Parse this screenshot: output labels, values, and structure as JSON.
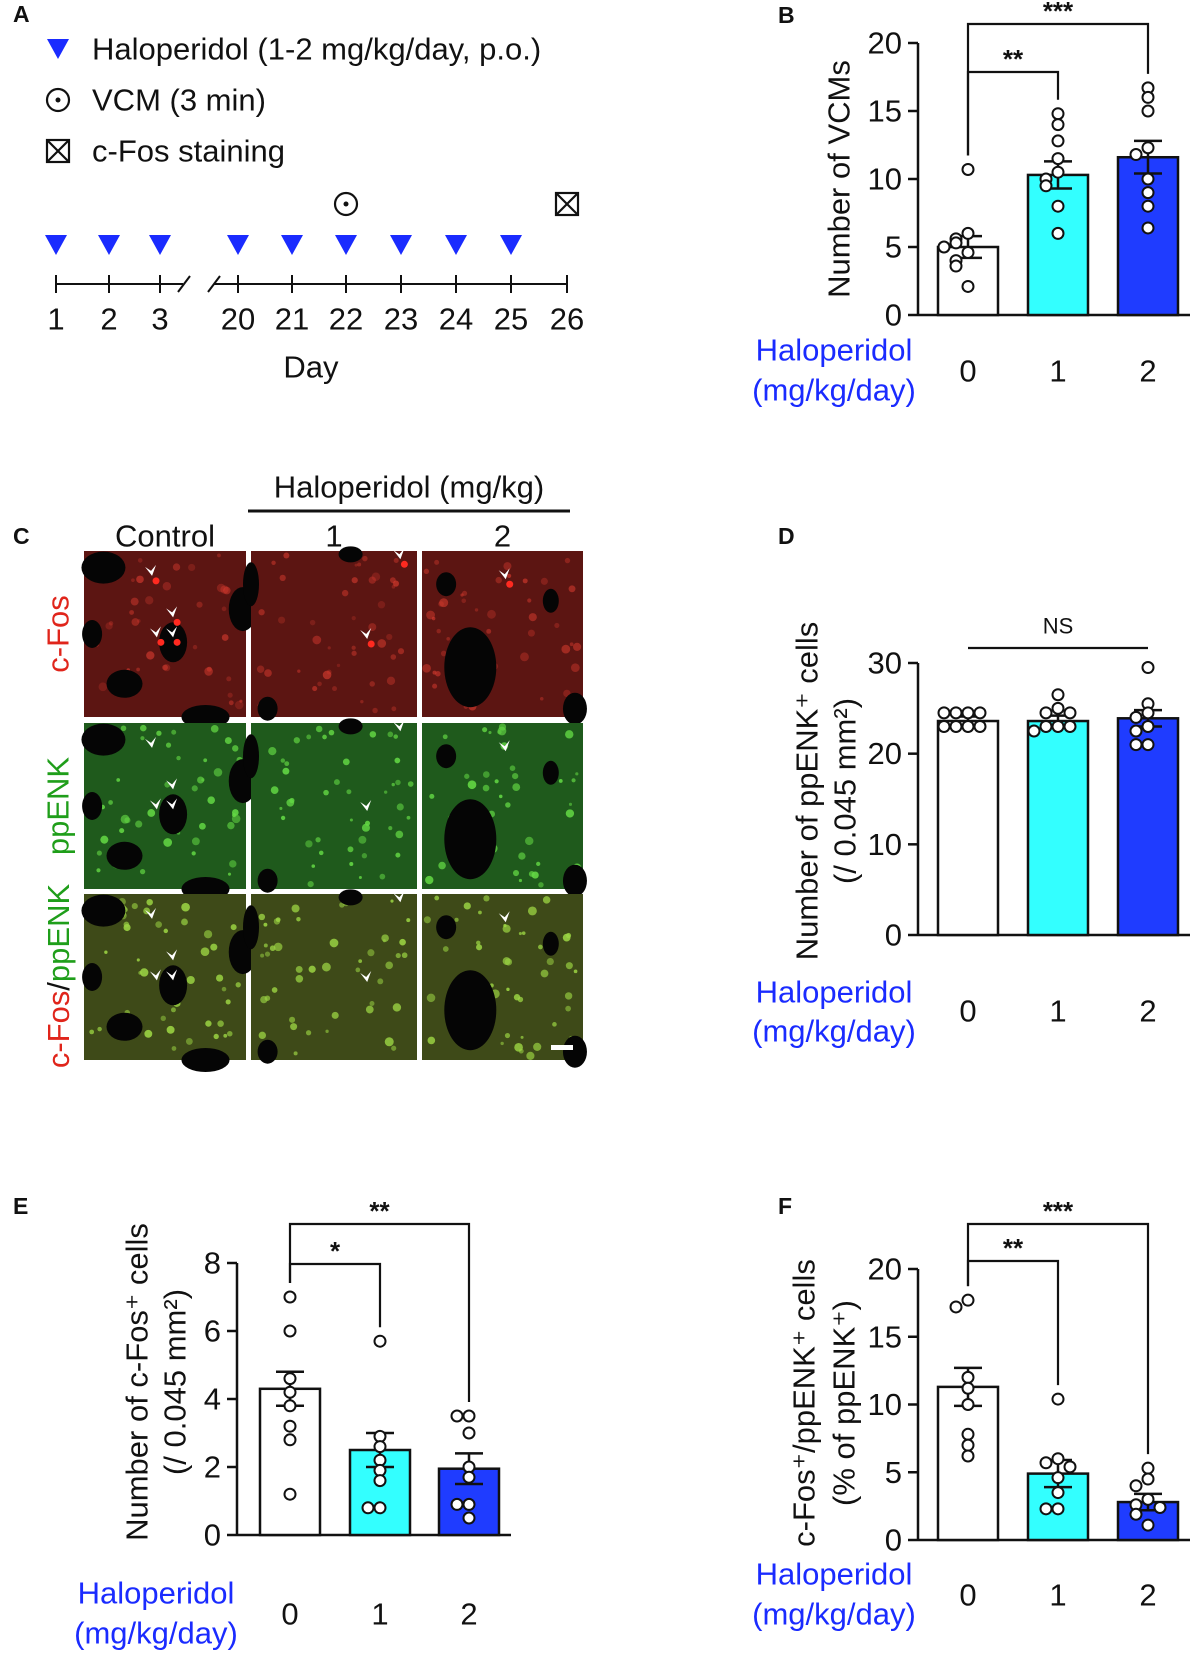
{
  "panel_a": {
    "label": "A",
    "legend": [
      "Haloperidol (1-2 mg/kg/day, p.o.)",
      "VCM (3 min)",
      "c-Fos staining"
    ],
    "days": [
      "1",
      "2",
      "3",
      "20",
      "21",
      "22",
      "23",
      "24",
      "25",
      "26"
    ],
    "xlabel": "Day"
  },
  "panel_c": {
    "label": "C",
    "title": "Haloperidol (mg/kg)",
    "columns": [
      "Control",
      "1",
      "2"
    ],
    "rows": [
      "c-Fos",
      "ppENK"
    ],
    "merged_row": [
      "c-Fos",
      "/",
      "ppENK"
    ]
  },
  "chart_data": [
    {
      "type": "bar",
      "panel": "B",
      "ylabel": [
        "Number of VCMs"
      ],
      "xlabel": [
        "Haloperidol",
        "(mg/kg/day)"
      ],
      "xlabel_color": "#1a2bff",
      "categories": [
        "0",
        "1",
        "2"
      ],
      "values": [
        5.0,
        10.3,
        11.6
      ],
      "errors": [
        0.8,
        1.0,
        1.2
      ],
      "colors": [
        "#ffffff",
        "#33ffff",
        "#1f3cff"
      ],
      "points": [
        [
          10.7,
          6.0,
          5.6,
          5.3,
          4.6,
          4.0,
          3.6,
          2.1,
          5.0
        ],
        [
          14.8,
          14.0,
          12.8,
          11.5,
          10.5,
          10.0,
          9.5,
          8.0,
          6.0
        ],
        [
          16.7,
          16.0,
          15.0,
          12.3,
          11.8,
          10.0,
          9.0,
          8.0,
          6.4
        ]
      ],
      "ylim": [
        0,
        20
      ],
      "yticks": [
        0,
        5,
        10,
        15,
        20
      ],
      "brackets": [
        {
          "label": "**",
          "from": "0",
          "to": "1"
        },
        {
          "label": "***",
          "from": "0",
          "to": "2"
        }
      ]
    },
    {
      "type": "bar",
      "panel": "D",
      "ylabel": [
        "Number of ppENK⁺ cells",
        "(/ 0.045 mm²)"
      ],
      "xlabel": [
        "Haloperidol",
        "(mg/kg/day)"
      ],
      "xlabel_color": "#1a2bff",
      "categories": [
        "0",
        "1",
        "2"
      ],
      "values": [
        23.6,
        23.6,
        23.9
      ],
      "errors": [
        0.5,
        0.6,
        0.9
      ],
      "colors": [
        "#ffffff",
        "#33ffff",
        "#1f3cff"
      ],
      "points": [
        [
          24.5,
          24.5,
          24.5,
          24.5,
          23.0,
          23.0,
          23.0,
          23.0
        ],
        [
          26.5,
          25.0,
          24.5,
          24.5,
          23.0,
          23.0,
          23.0,
          22.5
        ],
        [
          29.5,
          25.5,
          24.5,
          24.0,
          23.0,
          22.5,
          21.0,
          21.0
        ]
      ],
      "ylim": [
        0,
        30
      ],
      "yticks": [
        0,
        10,
        20,
        30
      ],
      "brackets": [
        {
          "label": "NS",
          "from": "0",
          "to": "2"
        }
      ]
    },
    {
      "type": "bar",
      "panel": "E",
      "ylabel": [
        "Number of c-Fos⁺ cells",
        "(/ 0.045 mm²)"
      ],
      "xlabel": [
        "Haloperidol",
        "(mg/kg/day)"
      ],
      "xlabel_color": "#1a2bff",
      "categories": [
        "0",
        "1",
        "2"
      ],
      "values": [
        4.3,
        2.5,
        1.95
      ],
      "errors": [
        0.5,
        0.5,
        0.45
      ],
      "colors": [
        "#ffffff",
        "#33ffff",
        "#1f3cff"
      ],
      "points": [
        [
          7.0,
          6.0,
          4.6,
          4.2,
          3.8,
          3.2,
          2.8,
          1.2
        ],
        [
          5.7,
          2.9,
          2.6,
          2.2,
          1.9,
          1.6,
          0.8,
          0.8
        ],
        [
          3.5,
          3.5,
          3.0,
          2.0,
          1.7,
          0.9,
          0.9,
          0.5
        ]
      ],
      "ylim": [
        0,
        8
      ],
      "yticks": [
        0,
        2,
        4,
        6,
        8
      ],
      "brackets": [
        {
          "label": "*",
          "from": "0",
          "to": "1"
        },
        {
          "label": "**",
          "from": "0",
          "to": "2"
        }
      ]
    },
    {
      "type": "bar",
      "panel": "F",
      "ylabel": [
        "c-Fos⁺/ppENK⁺ cells",
        "(% of ppENK⁺)"
      ],
      "xlabel": [
        "Haloperidol",
        "(mg/kg/day)"
      ],
      "xlabel_color": "#1a2bff",
      "categories": [
        "0",
        "1",
        "2"
      ],
      "values": [
        11.3,
        4.9,
        2.8
      ],
      "errors": [
        1.4,
        1.0,
        0.6
      ],
      "colors": [
        "#ffffff",
        "#33ffff",
        "#1f3cff"
      ],
      "points": [
        [
          17.7,
          17.2,
          12.0,
          11.2,
          10.0,
          7.8,
          7.0,
          6.2
        ],
        [
          10.4,
          6.0,
          5.7,
          5.4,
          4.6,
          3.5,
          2.3,
          2.3
        ],
        [
          5.3,
          4.5,
          4.0,
          3.0,
          2.6,
          2.4,
          1.9,
          1.1
        ]
      ],
      "ylim": [
        0,
        20
      ],
      "yticks": [
        0,
        5,
        10,
        15,
        20
      ],
      "brackets": [
        {
          "label": "**",
          "from": "0",
          "to": "1"
        },
        {
          "label": "***",
          "from": "0",
          "to": "2"
        }
      ]
    }
  ]
}
